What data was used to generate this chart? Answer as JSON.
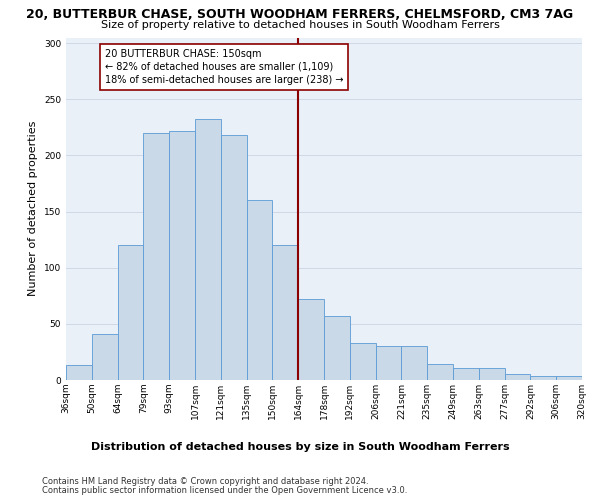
{
  "title": "20, BUTTERBUR CHASE, SOUTH WOODHAM FERRERS, CHELMSFORD, CM3 7AG",
  "subtitle": "Size of property relative to detached houses in South Woodham Ferrers",
  "xlabel": "Distribution of detached houses by size in South Woodham Ferrers",
  "ylabel": "Number of detached properties",
  "footnote1": "Contains HM Land Registry data © Crown copyright and database right 2024.",
  "footnote2": "Contains public sector information licensed under the Open Government Licence v3.0.",
  "bar_labels": [
    "36sqm",
    "50sqm",
    "64sqm",
    "79sqm",
    "93sqm",
    "107sqm",
    "121sqm",
    "135sqm",
    "150sqm",
    "164sqm",
    "178sqm",
    "192sqm",
    "206sqm",
    "221sqm",
    "235sqm",
    "249sqm",
    "263sqm",
    "277sqm",
    "292sqm",
    "306sqm",
    "320sqm"
  ],
  "bar_values": [
    13,
    41,
    120,
    220,
    222,
    232,
    218,
    160,
    120,
    72,
    57,
    33,
    30,
    30,
    14,
    11,
    11,
    5,
    4,
    4
  ],
  "bar_color": "#c9d9e8",
  "bar_edgecolor": "#5b9bd5",
  "vline_color": "#8b0000",
  "annotation_text": "20 BUTTERBUR CHASE: 150sqm\n← 82% of detached houses are smaller (1,109)\n18% of semi-detached houses are larger (238) →",
  "annotation_box_edgecolor": "#8b0000",
  "annotation_box_facecolor": "white",
  "ylim": [
    0,
    305
  ],
  "yticks": [
    0,
    50,
    100,
    150,
    200,
    250,
    300
  ],
  "grid_color": "#d0d8e8",
  "bg_color": "#eaf0f8",
  "title_fontsize": 9,
  "subtitle_fontsize": 8,
  "ylabel_fontsize": 8,
  "xlabel_fontsize": 8,
  "tick_fontsize": 6.5,
  "annot_fontsize": 7,
  "footnote_fontsize": 6
}
